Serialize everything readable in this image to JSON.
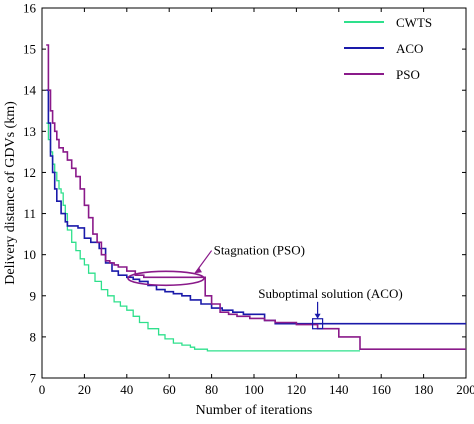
{
  "chart_data": {
    "type": "line",
    "title": "",
    "xlabel": "Number of iterations",
    "ylabel": "Delivery distance of GDVs (km)",
    "xlim": [
      0,
      200
    ],
    "ylim": [
      7,
      16
    ],
    "xticks": [
      0,
      20,
      40,
      60,
      80,
      100,
      120,
      140,
      160,
      180,
      200
    ],
    "yticks": [
      7,
      8,
      9,
      10,
      11,
      12,
      13,
      14,
      15,
      16
    ],
    "grid": false,
    "legend_position": "top-right",
    "series": [
      {
        "name": "CWTS",
        "color": "#2ee08c",
        "x": [
          2,
          3,
          4,
          5,
          6,
          7,
          8,
          9,
          10,
          11,
          12,
          14,
          16,
          18,
          20,
          22,
          25,
          28,
          31,
          34,
          37,
          40,
          43,
          46,
          50,
          55,
          58,
          62,
          66,
          70,
          72,
          78,
          150
        ],
        "y": [
          13.2,
          12.8,
          12.5,
          12.2,
          12.0,
          11.8,
          11.6,
          11.5,
          11.2,
          11.0,
          10.6,
          10.3,
          10.1,
          9.9,
          9.75,
          9.55,
          9.35,
          9.15,
          9.0,
          8.85,
          8.75,
          8.65,
          8.5,
          8.35,
          8.2,
          8.05,
          7.95,
          7.85,
          7.8,
          7.75,
          7.7,
          7.66,
          7.66
        ]
      },
      {
        "name": "ACO",
        "color": "#1a1aaa",
        "x": [
          2,
          3,
          4,
          5,
          6,
          7,
          9,
          11,
          12,
          14,
          17,
          20,
          23,
          27,
          30,
          33,
          36,
          40,
          43,
          46,
          50,
          54,
          58,
          62,
          66,
          70,
          75,
          80,
          85,
          90,
          95,
          105,
          110,
          200
        ],
        "y": [
          14.0,
          13.2,
          12.4,
          12.0,
          11.6,
          11.3,
          11.0,
          10.8,
          10.7,
          10.7,
          10.65,
          10.4,
          10.3,
          10.15,
          9.8,
          9.6,
          9.5,
          9.45,
          9.4,
          9.35,
          9.25,
          9.15,
          9.1,
          9.05,
          9.0,
          8.9,
          8.8,
          8.7,
          8.65,
          8.6,
          8.55,
          8.4,
          8.32,
          8.32
        ]
      },
      {
        "name": "PSO",
        "color": "#8a1a8a",
        "x": [
          2,
          3,
          4,
          5,
          6,
          7,
          8,
          10,
          12,
          14,
          16,
          18,
          20,
          22,
          24,
          26,
          28,
          30,
          32,
          34,
          36,
          40,
          44,
          48,
          55,
          60,
          65,
          70,
          75,
          77,
          80,
          84,
          88,
          92,
          98,
          105,
          110,
          120,
          130,
          140,
          150,
          200
        ],
        "y": [
          15.1,
          14.0,
          13.5,
          13.2,
          13.0,
          12.8,
          12.6,
          12.5,
          12.3,
          12.1,
          11.9,
          11.6,
          11.2,
          10.9,
          10.5,
          10.3,
          10.0,
          9.85,
          9.8,
          9.75,
          9.7,
          9.6,
          9.5,
          9.45,
          9.45,
          9.45,
          9.45,
          9.45,
          9.45,
          9.0,
          8.8,
          8.6,
          8.55,
          8.5,
          8.45,
          8.4,
          8.35,
          8.3,
          8.2,
          8.0,
          7.7,
          7.7
        ]
      }
    ],
    "annotations": [
      {
        "text": "Stagnation (PSO)",
        "x": 58,
        "y": 9.45,
        "text_x": 80,
        "text_y": 10.1,
        "marker": "ellipse",
        "color": "#8a1a8a"
      },
      {
        "text": "Suboptimal solution (ACO)",
        "x": 130,
        "y": 8.32,
        "text_x": 102,
        "text_y": 8.95,
        "marker": "square",
        "color": "#1a1aaa"
      }
    ]
  }
}
